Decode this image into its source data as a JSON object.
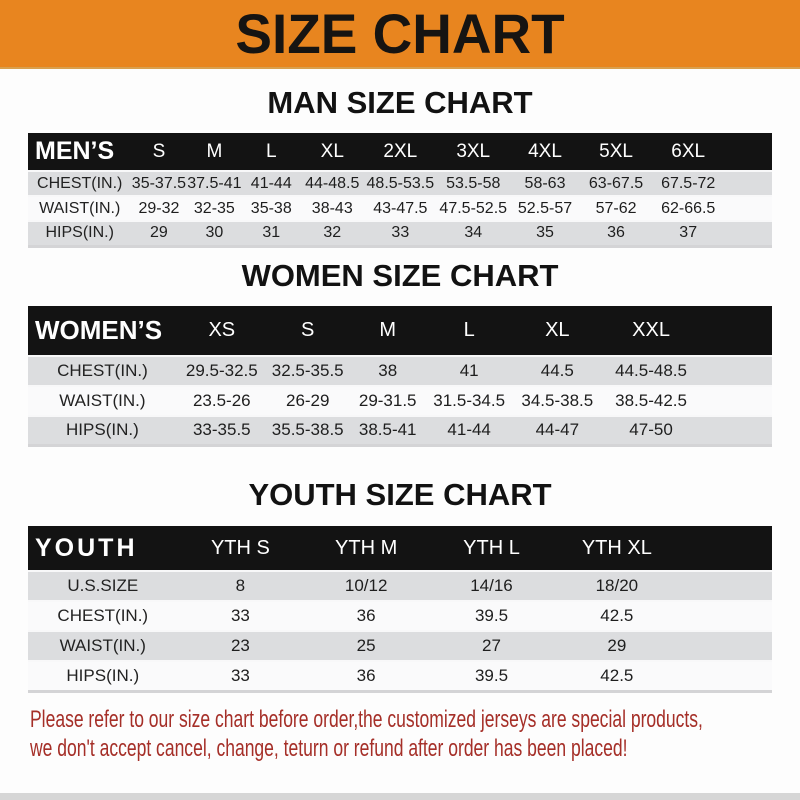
{
  "banner": {
    "title": "SIZE CHART",
    "bg_color": "#E8851F",
    "text_color": "#161412"
  },
  "sections": [
    {
      "heading": "MAN SIZE CHART",
      "table": {
        "name": "MEN’S",
        "sizes": [
          "S",
          "M",
          "L",
          "XL",
          "2XL",
          "3XL",
          "4XL",
          "5XL",
          "6XL"
        ],
        "rows": [
          {
            "label": "CHEST(IN.)",
            "values": [
              "35-37.5",
              "37.5-41",
              "41-44",
              "44-48.5",
              "48.5-53.5",
              "53.5-58",
              "58-63",
              "63-67.5",
              "67.5-72"
            ]
          },
          {
            "label": "WAIST(IN.)",
            "values": [
              "29-32",
              "32-35",
              "35-38",
              "38-43",
              "43-47.5",
              "47.5-52.5",
              "52.5-57",
              "57-62",
              "62-66.5"
            ]
          },
          {
            "label": "HIPS(IN.)",
            "values": [
              "29",
              "30",
              "31",
              "32",
              "33",
              "34",
              "35",
              "36",
              "37"
            ]
          }
        ]
      }
    },
    {
      "heading": "WOMEN SIZE CHART",
      "table": {
        "name": "WOMEN’S",
        "sizes": [
          "XS",
          "S",
          "M",
          "L",
          "XL",
          "XXL"
        ],
        "rows": [
          {
            "label": "CHEST(IN.)",
            "values": [
              "29.5-32.5",
              "32.5-35.5",
              "38",
              "41",
              "44.5",
              "44.5-48.5"
            ]
          },
          {
            "label": "WAIST(IN.)",
            "values": [
              "23.5-26",
              "26-29",
              "29-31.5",
              "31.5-34.5",
              "34.5-38.5",
              "38.5-42.5"
            ]
          },
          {
            "label": "HIPS(IN.)",
            "values": [
              "33-35.5",
              "35.5-38.5",
              "38.5-41",
              "41-44",
              "44-47",
              "47-50"
            ]
          }
        ]
      }
    },
    {
      "heading": "YOUTH SIZE CHART",
      "table": {
        "name": "YOUTH",
        "sizes": [
          "YTH S",
          "YTH M",
          "YTH L",
          "YTH XL"
        ],
        "rows": [
          {
            "label": "U.S.SIZE",
            "values": [
              "8",
              "10/12",
              "14/16",
              "18/20"
            ]
          },
          {
            "label": "CHEST(IN.)",
            "values": [
              "33",
              "36",
              "39.5",
              "42.5"
            ]
          },
          {
            "label": "WAIST(IN.)",
            "values": [
              "23",
              "25",
              "27",
              "29"
            ]
          },
          {
            "label": "HIPS(IN.)",
            "values": [
              "33",
              "36",
              "39.5",
              "42.5"
            ]
          }
        ]
      }
    }
  ],
  "footer": {
    "lines": [
      "Please refer to our size chart before order,the customized jerseys are special products,",
      "we don't accept cancel, change, teturn or refund after order has been placed!"
    ],
    "text_color": "#A52F28"
  }
}
